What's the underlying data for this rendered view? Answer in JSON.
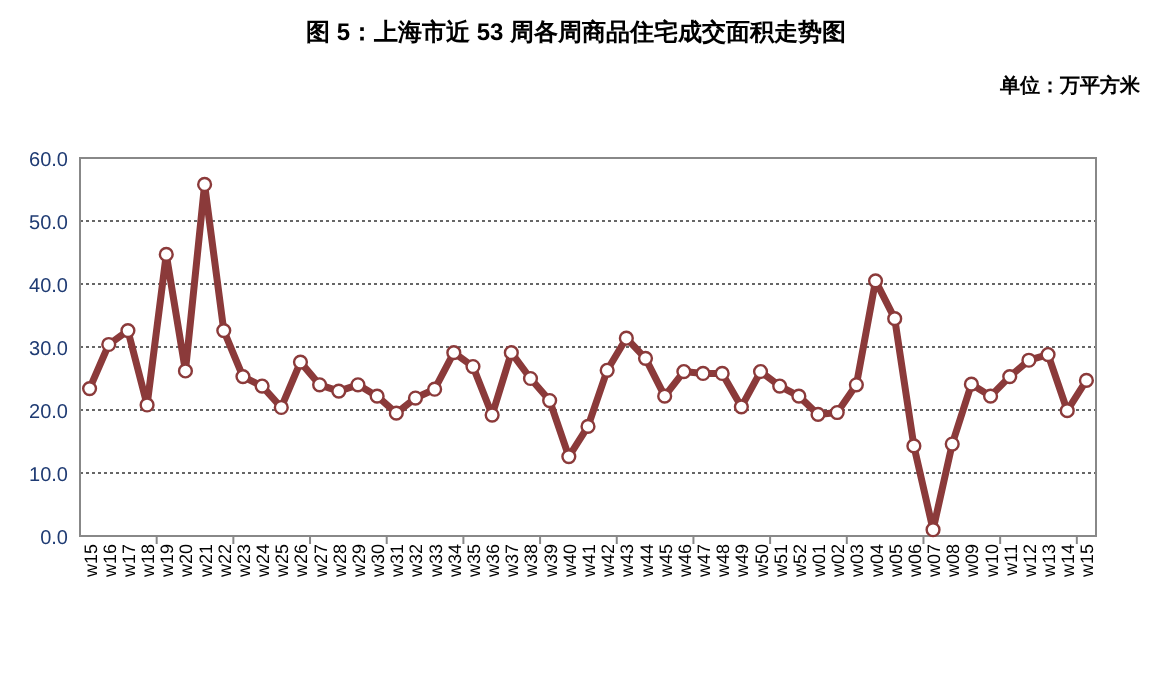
{
  "chart_data": {
    "type": "line",
    "title": "图 5：上海市近 53 周各周商品住宅成交面积走势图",
    "annotations": [
      "单位：万平方米"
    ],
    "categories": [
      "w15",
      "w16",
      "w17",
      "w18",
      "w19",
      "w20",
      "w21",
      "w22",
      "w23",
      "w24",
      "w25",
      "w26",
      "w27",
      "w28",
      "w29",
      "w30",
      "w31",
      "w32",
      "w33",
      "w34",
      "w35",
      "w36",
      "w37",
      "w38",
      "w39",
      "w40",
      "w41",
      "w42",
      "w43",
      "w44",
      "w45",
      "w46",
      "w47",
      "w48",
      "w49",
      "w50",
      "w51",
      "w52",
      "w01",
      "w02",
      "w03",
      "w04",
      "w05",
      "w06",
      "w07",
      "w08",
      "w09",
      "w10",
      "w11",
      "w12",
      "w13",
      "w14",
      "w15"
    ],
    "series": [
      {
        "color": "#8b3a3a",
        "values": [
          23.4,
          30.4,
          32.6,
          20.8,
          44.7,
          26.2,
          55.8,
          32.6,
          25.3,
          23.8,
          20.4,
          27.6,
          24.0,
          23.0,
          24.0,
          22.2,
          19.5,
          21.9,
          23.3,
          29.1,
          26.9,
          19.2,
          29.1,
          25.0,
          21.5,
          12.6,
          17.4,
          26.3,
          31.4,
          28.2,
          22.2,
          26.1,
          25.8,
          25.8,
          20.5,
          26.1,
          23.8,
          22.2,
          19.3,
          19.6,
          24.0,
          40.5,
          34.5,
          14.3,
          1.0,
          14.6,
          24.1,
          22.2,
          25.3,
          27.9,
          28.8,
          19.9,
          24.7
        ]
      }
    ],
    "ylim": [
      0,
      60
    ],
    "yticks": [
      {
        "value": 0,
        "label": "0.0"
      },
      {
        "value": 10,
        "label": "10.0"
      },
      {
        "value": 20,
        "label": "20.0"
      },
      {
        "value": 30,
        "label": "30.0"
      },
      {
        "value": 40,
        "label": "40.0"
      },
      {
        "value": 50,
        "label": "50.0"
      },
      {
        "value": 60,
        "label": "60.0"
      }
    ],
    "grid": "y",
    "marker": "circle",
    "line_style": "solid"
  }
}
